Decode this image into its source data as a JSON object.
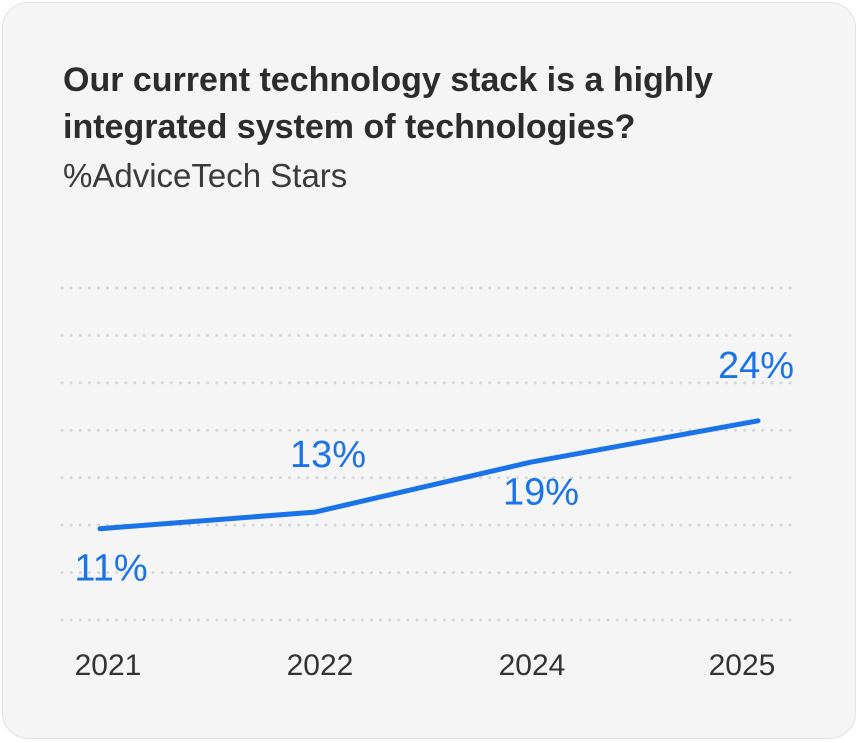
{
  "chart_data": {
    "type": "line",
    "title": "Our current technology stack is a highly integrated system of technologies?",
    "subtitle": "%AdviceTech Stars",
    "categories": [
      "2021",
      "2022",
      "2024",
      "2025"
    ],
    "series": [
      {
        "values": [
          11,
          13,
          19,
          24
        ],
        "labels": [
          "11%",
          "13%",
          "19%",
          "24%"
        ]
      }
    ],
    "ylim": [
      0,
      40
    ],
    "grid": true,
    "grid_style": "dotted",
    "colors": {
      "line": "#1a73e8",
      "grid": "#d6d6d6",
      "background": "#f5f5f5",
      "title": "#2c2c2c"
    }
  }
}
